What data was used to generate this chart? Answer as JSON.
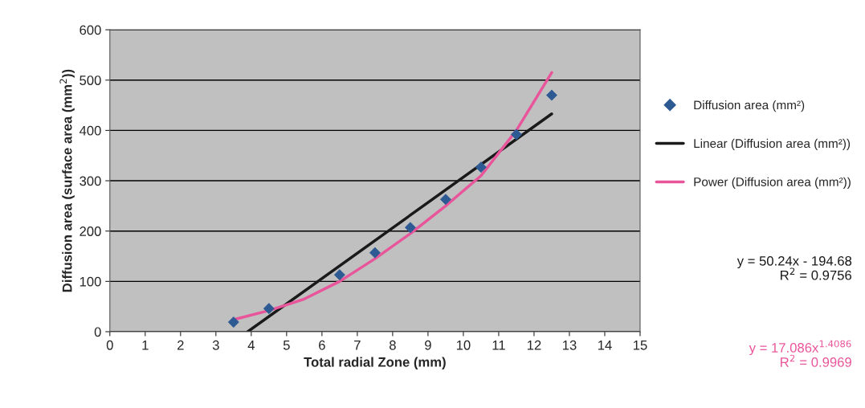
{
  "chart_data": {
    "type": "scatter",
    "xlabel": "Total radial Zone (mm)",
    "ylabel": "Diffusion area (surface area (mm$^{2}$))",
    "xlim": [
      0,
      15
    ],
    "xticks": [
      0,
      1,
      2,
      3,
      4,
      5,
      6,
      7,
      8,
      9,
      10,
      11,
      12,
      13,
      14,
      15
    ],
    "ylim": [
      0,
      600
    ],
    "yticks": [
      0,
      100,
      200,
      300,
      400,
      500,
      600
    ],
    "grid": "y",
    "legend": "right",
    "series": [
      {
        "name": "Diffusion area (mm²)",
        "marker": "diamond",
        "color": "#2e5a93",
        "x": [
          3.5,
          4.5,
          6.5,
          7.5,
          8.5,
          9.5,
          10.5,
          11.5,
          12.5
        ],
        "values": [
          19,
          46,
          113,
          157,
          207,
          263,
          327,
          392,
          470
        ]
      },
      {
        "name": "Linear (Diffusion area (mm²))",
        "type": "line",
        "color": "#1a1a1a",
        "x": [
          3.9,
          12.5
        ],
        "values": [
          0,
          433
        ]
      },
      {
        "name": "Power (Diffusion area (mm²))",
        "type": "line",
        "color": "#e8559a",
        "x": [
          3.5,
          4.5,
          5.5,
          6.5,
          7.5,
          8.5,
          9.5,
          10.5,
          11.5,
          12.5
        ],
        "values": [
          24,
          42,
          65,
          100,
          145,
          195,
          250,
          310,
          400,
          515
        ]
      }
    ],
    "annotations": [
      "y = 50.24x - 194.68\nR$^{2}$ = 0.9756",
      "y = 17.086x$^{1.4086}$\nR$^{2}$ = 0.9969"
    ]
  }
}
